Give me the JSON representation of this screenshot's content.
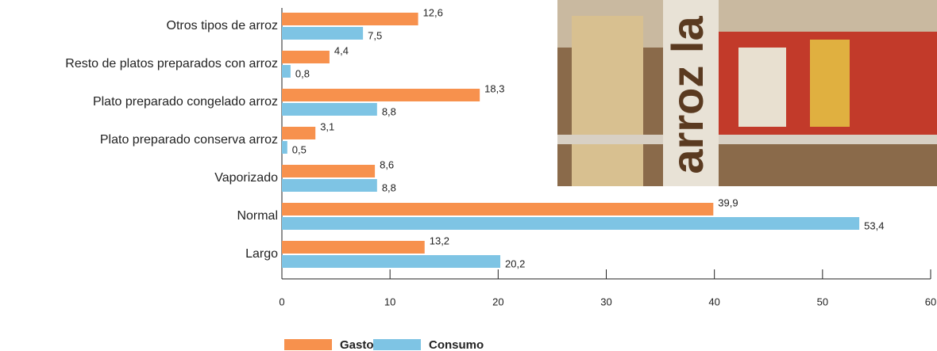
{
  "chart_data": {
    "type": "bar",
    "orientation": "horizontal",
    "categories": [
      "Otros tipos de arroz",
      "Resto de platos preparados con arroz",
      "Plato preparado congelado arroz",
      "Plato preparado conserva arroz",
      "Vaporizado",
      "Normal",
      "Largo"
    ],
    "series": [
      {
        "name": "Gasto",
        "color": "#f7914d",
        "values": [
          12.6,
          4.4,
          18.3,
          3.1,
          8.6,
          39.9,
          13.2
        ],
        "value_labels": [
          "12,6",
          "4,4",
          "18,3",
          "3,1",
          "8,6",
          "39,9",
          "13,2"
        ]
      },
      {
        "name": "Consumo",
        "color": "#7ec4e4",
        "values": [
          7.5,
          0.8,
          8.8,
          0.5,
          8.8,
          53.4,
          20.2
        ],
        "value_labels": [
          "7,5",
          "0,8",
          "8,8",
          "0,5",
          "8,8",
          "53,4",
          "20,2"
        ]
      }
    ],
    "xlim": [
      0,
      60
    ],
    "xticks": [
      0,
      10,
      20,
      30,
      40,
      50,
      60
    ],
    "photo_text": "arroz la"
  }
}
